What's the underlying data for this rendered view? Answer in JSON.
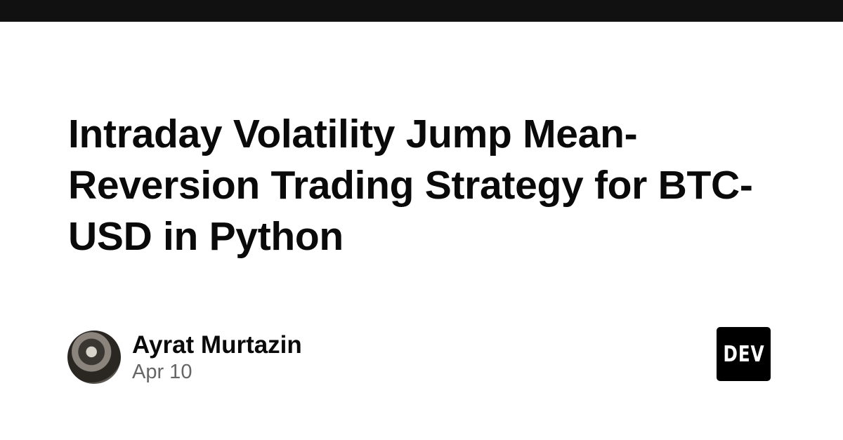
{
  "article": {
    "title": "Intraday Volatility Jump Mean-Reversion Trading Strategy for BTC-USD in Python",
    "author": "Ayrat Murtazin",
    "date": "Apr 10"
  },
  "brand": {
    "logo_text": "DEV",
    "topbar_color": "#111111"
  }
}
